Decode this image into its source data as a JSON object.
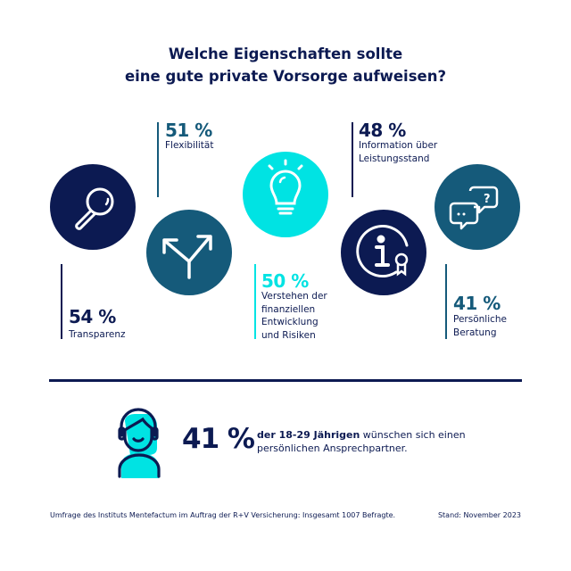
{
  "title": {
    "line1": "Welche Eigenschaften sollte",
    "line2": "eine gute private Vorsorge aufweisen?"
  },
  "colors": {
    "navy": "#0c1a52",
    "teal": "#155a7a",
    "cyan": "#00e3e3"
  },
  "items": [
    {
      "percent": "54 %",
      "label_lines": [
        "Transparenz"
      ],
      "icon": "magnifier-icon",
      "color": "#0c1a52"
    },
    {
      "percent": "51 %",
      "label_lines": [
        "Flexibilität"
      ],
      "icon": "split-arrows-icon",
      "color": "#155a7a"
    },
    {
      "percent": "50 %",
      "label_lines": [
        "Verstehen der",
        "finanziellen",
        "Entwicklung",
        "und Risiken"
      ],
      "icon": "lightbulb-icon",
      "color": "#00e3e3"
    },
    {
      "percent": "48 %",
      "label_lines": [
        "Information über",
        "Leistungsstand"
      ],
      "icon": "info-badge-icon",
      "color": "#0c1a52"
    },
    {
      "percent": "41 %",
      "label_lines": [
        "Persönliche",
        "Beratung"
      ],
      "icon": "speech-bubbles-icon",
      "color": "#155a7a"
    }
  ],
  "highlight": {
    "percent": "41 %",
    "text_bold": "der 18-29 Jährigen",
    "text_rest": " wünschen sich einen",
    "text_line2": "persönlichen Ansprechpartner.",
    "icon": "person-headset-icon"
  },
  "footer": {
    "source": "Umfrage des Instituts Mentefactum im Auftrag der R+V Versicherung: Insgesamt 1007 Befragte.",
    "date": "Stand: November 2023"
  }
}
